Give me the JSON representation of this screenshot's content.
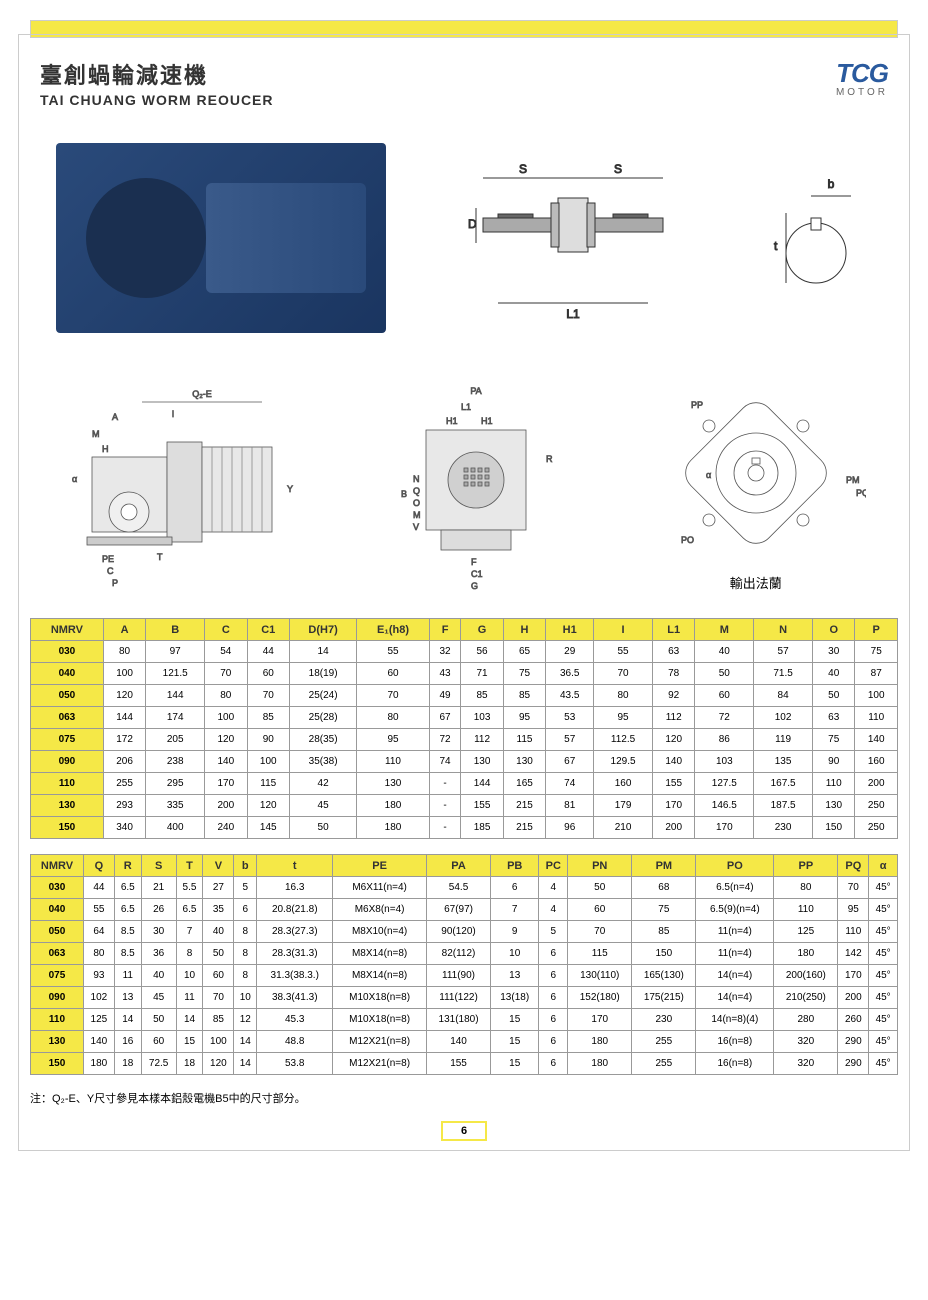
{
  "header": {
    "title_cn": "臺創蝸輪減速機",
    "title_en": "TAI CHUANG WORM REOUCER",
    "logo_text": "TCG",
    "logo_sub": "MOTOR",
    "logo_color": "#2a5a9e"
  },
  "colors": {
    "accent": "#f5e847",
    "border": "#999",
    "product_blue": "#2a4a7a"
  },
  "diagram_labels": {
    "top_shaft_S": "S",
    "top_shaft_D": "D",
    "top_shaft_L1": "L1",
    "top_key_b": "b",
    "top_key_t": "t",
    "side_Q2E": "Q₂-E",
    "side_A": "A",
    "side_M": "M",
    "side_H": "H",
    "side_Y": "Y",
    "side_PE": "PE",
    "side_C": "C",
    "side_P": "P",
    "side_T": "T",
    "side_alpha": "α",
    "side_i": "i",
    "front_PA": "PA",
    "front_L1": "L1",
    "front_H1": "H1",
    "front_R": "R",
    "front_B": "B",
    "front_N": "N",
    "front_Q": "Q",
    "front_O": "O",
    "front_M": "M",
    "front_V": "V",
    "front_F": "F",
    "front_C1": "C1",
    "front_G": "G",
    "flange_PP": "PP",
    "flange_PM": "PM",
    "flange_PQ": "PQ",
    "flange_PO": "PO",
    "flange_alpha": "α",
    "flange_caption": "輸出法蘭"
  },
  "table1": {
    "columns": [
      "NMRV",
      "A",
      "B",
      "C",
      "C1",
      "D(H7)",
      "E₁(h8)",
      "F",
      "G",
      "H",
      "H1",
      "I",
      "L1",
      "M",
      "N",
      "O",
      "P"
    ],
    "rows": [
      [
        "030",
        "80",
        "97",
        "54",
        "44",
        "14",
        "55",
        "32",
        "56",
        "65",
        "29",
        "55",
        "63",
        "40",
        "57",
        "30",
        "75"
      ],
      [
        "040",
        "100",
        "121.5",
        "70",
        "60",
        "18(19)",
        "60",
        "43",
        "71",
        "75",
        "36.5",
        "70",
        "78",
        "50",
        "71.5",
        "40",
        "87"
      ],
      [
        "050",
        "120",
        "144",
        "80",
        "70",
        "25(24)",
        "70",
        "49",
        "85",
        "85",
        "43.5",
        "80",
        "92",
        "60",
        "84",
        "50",
        "100"
      ],
      [
        "063",
        "144",
        "174",
        "100",
        "85",
        "25(28)",
        "80",
        "67",
        "103",
        "95",
        "53",
        "95",
        "112",
        "72",
        "102",
        "63",
        "110"
      ],
      [
        "075",
        "172",
        "205",
        "120",
        "90",
        "28(35)",
        "95",
        "72",
        "112",
        "115",
        "57",
        "112.5",
        "120",
        "86",
        "119",
        "75",
        "140"
      ],
      [
        "090",
        "206",
        "238",
        "140",
        "100",
        "35(38)",
        "110",
        "74",
        "130",
        "130",
        "67",
        "129.5",
        "140",
        "103",
        "135",
        "90",
        "160"
      ],
      [
        "110",
        "255",
        "295",
        "170",
        "115",
        "42",
        "130",
        "-",
        "144",
        "165",
        "74",
        "160",
        "155",
        "127.5",
        "167.5",
        "110",
        "200"
      ],
      [
        "130",
        "293",
        "335",
        "200",
        "120",
        "45",
        "180",
        "-",
        "155",
        "215",
        "81",
        "179",
        "170",
        "146.5",
        "187.5",
        "130",
        "250"
      ],
      [
        "150",
        "340",
        "400",
        "240",
        "145",
        "50",
        "180",
        "-",
        "185",
        "215",
        "96",
        "210",
        "200",
        "170",
        "230",
        "150",
        "250"
      ]
    ]
  },
  "table2": {
    "columns": [
      "NMRV",
      "Q",
      "R",
      "S",
      "T",
      "V",
      "b",
      "t",
      "PE",
      "PA",
      "PB",
      "PC",
      "PN",
      "PM",
      "PO",
      "PP",
      "PQ",
      "α"
    ],
    "rows": [
      [
        "030",
        "44",
        "6.5",
        "21",
        "5.5",
        "27",
        "5",
        "16.3",
        "M6X11(n=4)",
        "54.5",
        "6",
        "4",
        "50",
        "68",
        "6.5(n=4)",
        "80",
        "70",
        "45°"
      ],
      [
        "040",
        "55",
        "6.5",
        "26",
        "6.5",
        "35",
        "6",
        "20.8(21.8)",
        "M6X8(n=4)",
        "67(97)",
        "7",
        "4",
        "60",
        "75",
        "6.5(9)(n=4)",
        "110",
        "95",
        "45°"
      ],
      [
        "050",
        "64",
        "8.5",
        "30",
        "7",
        "40",
        "8",
        "28.3(27.3)",
        "M8X10(n=4)",
        "90(120)",
        "9",
        "5",
        "70",
        "85",
        "11(n=4)",
        "125",
        "110",
        "45°"
      ],
      [
        "063",
        "80",
        "8.5",
        "36",
        "8",
        "50",
        "8",
        "28.3(31.3)",
        "M8X14(n=8)",
        "82(112)",
        "10",
        "6",
        "115",
        "150",
        "11(n=4)",
        "180",
        "142",
        "45°"
      ],
      [
        "075",
        "93",
        "11",
        "40",
        "10",
        "60",
        "8",
        "31.3(38.3.)",
        "M8X14(n=8)",
        "111(90)",
        "13",
        "6",
        "130(110)",
        "165(130)",
        "14(n=4)",
        "200(160)",
        "170",
        "45°"
      ],
      [
        "090",
        "102",
        "13",
        "45",
        "11",
        "70",
        "10",
        "38.3(41.3)",
        "M10X18(n=8)",
        "111(122)",
        "13(18)",
        "6",
        "152(180)",
        "175(215)",
        "14(n=4)",
        "210(250)",
        "200",
        "45°"
      ],
      [
        "110",
        "125",
        "14",
        "50",
        "14",
        "85",
        "12",
        "45.3",
        "M10X18(n=8)",
        "131(180)",
        "15",
        "6",
        "170",
        "230",
        "14(n=8)(4)",
        "280",
        "260",
        "45°"
      ],
      [
        "130",
        "140",
        "16",
        "60",
        "15",
        "100",
        "14",
        "48.8",
        "M12X21(n=8)",
        "140",
        "15",
        "6",
        "180",
        "255",
        "16(n=8)",
        "320",
        "290",
        "45°"
      ],
      [
        "150",
        "180",
        "18",
        "72.5",
        "18",
        "120",
        "14",
        "53.8",
        "M12X21(n=8)",
        "155",
        "15",
        "6",
        "180",
        "255",
        "16(n=8)",
        "320",
        "290",
        "45°"
      ]
    ]
  },
  "footnote": "注：Q₂-E、Y尺寸參見本樣本鋁殼電機B5中的尺寸部分。",
  "page_number": "6"
}
